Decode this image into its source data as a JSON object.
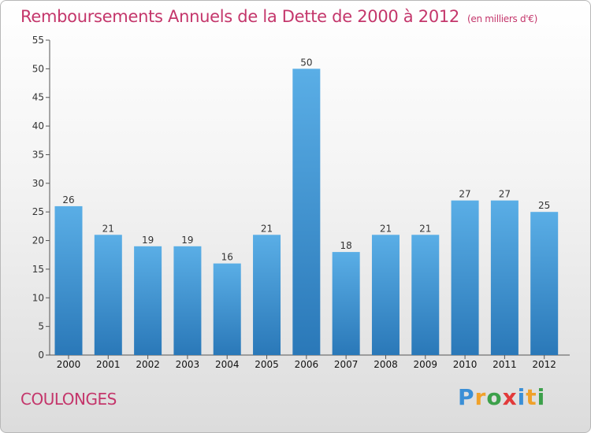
{
  "title": "Remboursements Annuels de la Dette de 2000 à 2012",
  "unit": "(en milliers d'€)",
  "place": "COULONGES",
  "logo": {
    "text": "Proxiti",
    "letters": [
      {
        "ch": "P",
        "color": "#3a8fd6"
      },
      {
        "ch": "r",
        "color": "#f0a12a"
      },
      {
        "ch": "o",
        "color": "#3ca04a"
      },
      {
        "ch": "x",
        "color": "#e23a3a"
      },
      {
        "ch": "i",
        "color": "#3a8fd6"
      },
      {
        "ch": "t",
        "color": "#f0a12a"
      },
      {
        "ch": "i",
        "color": "#3ca04a"
      }
    ]
  },
  "colors": {
    "bar_top": "#5aaee6",
    "bar_bottom": "#2a78b8",
    "title": "#c4366b"
  },
  "chart_data": {
    "type": "bar",
    "categories": [
      "2000",
      "2001",
      "2002",
      "2003",
      "2004",
      "2005",
      "2006",
      "2007",
      "2008",
      "2009",
      "2010",
      "2011",
      "2012"
    ],
    "values": [
      26,
      21,
      19,
      19,
      16,
      21,
      50,
      18,
      21,
      21,
      27,
      27,
      25
    ],
    "title": "Remboursements Annuels de la Dette de 2000 à 2012",
    "ylim": [
      0,
      55
    ],
    "yticks": [
      0,
      5,
      10,
      15,
      20,
      25,
      30,
      35,
      40,
      45,
      50,
      55
    ],
    "grid": false,
    "legend": "none"
  }
}
